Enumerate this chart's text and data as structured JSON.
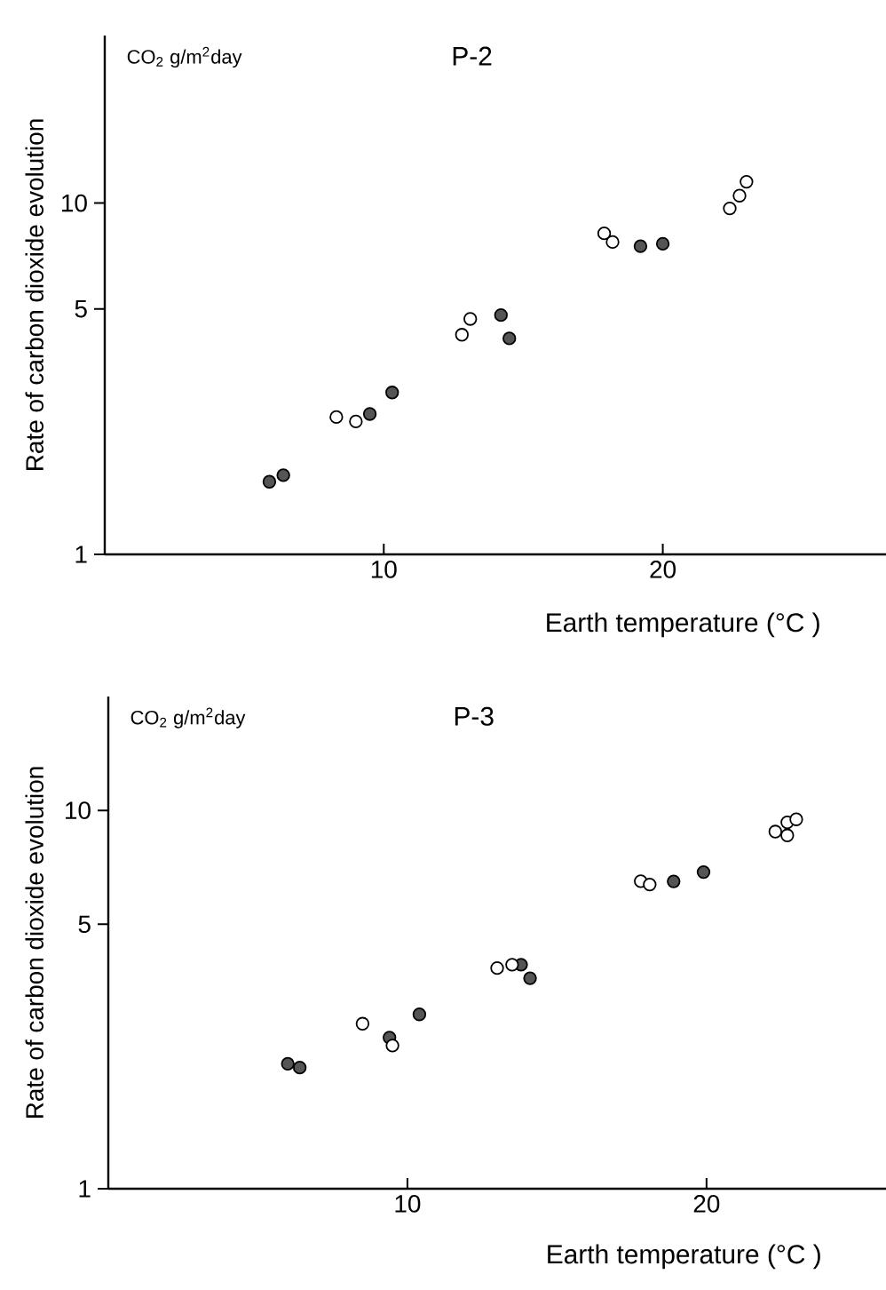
{
  "chart_data": [
    {
      "type": "scatter",
      "title": "P-2",
      "xlabel": "Earth temperature (°C )",
      "ylabel": "Rate of carbon dioxide evolution",
      "annotations": [
        "CO$_{2}$ g/m$^{2}$day"
      ],
      "xlim": [
        0,
        28
      ],
      "ylim": [
        1,
        30
      ],
      "xticks": [
        10,
        20
      ],
      "yticks": [
        1,
        5,
        10
      ],
      "log": "y",
      "marker": "circle",
      "series": [
        {
          "color": "#555555",
          "x": [
            5.9,
            6.4,
            9.5,
            10.3,
            14.2,
            14.5,
            19.2,
            20.0
          ],
          "values": [
            1.61,
            1.68,
            2.51,
            2.89,
            4.8,
            4.12,
            7.54,
            7.66
          ]
        },
        {
          "color": "#ffffff",
          "x": [
            8.3,
            9.0,
            12.8,
            13.1,
            17.9,
            18.2,
            22.4,
            22.75,
            23.0
          ],
          "values": [
            2.46,
            2.39,
            4.22,
            4.68,
            8.2,
            7.75,
            9.66,
            10.5,
            11.5
          ]
        }
      ]
    },
    {
      "type": "scatter",
      "title": "P-3",
      "xlabel": "Earth temperature (°C )",
      "ylabel": "Rate of carbon dioxide evolution",
      "annotations": [
        "CO$_{2}$ g/m$^{2}$day"
      ],
      "xlim": [
        0,
        26
      ],
      "ylim": [
        1,
        20
      ],
      "xticks": [
        10,
        20
      ],
      "yticks": [
        1,
        5,
        10
      ],
      "log": "y",
      "marker": "circle",
      "series": [
        {
          "color": "#555555",
          "x": [
            6.0,
            6.4,
            9.4,
            10.4,
            13.8,
            14.1,
            18.9,
            19.9
          ],
          "values": [
            2.14,
            2.09,
            2.51,
            2.89,
            3.91,
            3.6,
            6.49,
            6.87
          ]
        },
        {
          "color": "#ffffff",
          "x": [
            8.5,
            9.5,
            13.0,
            13.5,
            17.8,
            18.1,
            22.3,
            22.7,
            22.7,
            23.0
          ],
          "values": [
            2.73,
            2.39,
            3.83,
            3.91,
            6.5,
            6.37,
            8.79,
            8.59,
            9.3,
            9.47
          ]
        }
      ]
    }
  ]
}
